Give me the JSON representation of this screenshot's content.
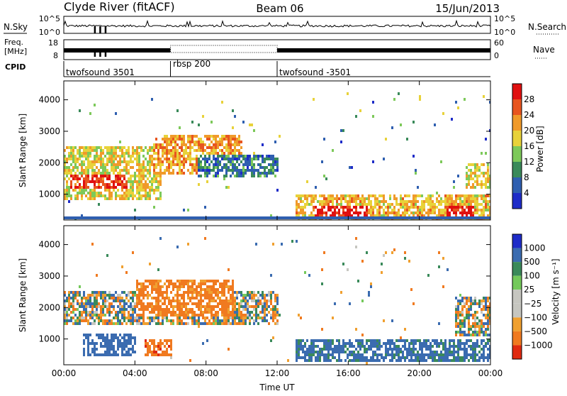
{
  "header": {
    "station": "Clyde River (fitACF)",
    "beam": "Beam 06",
    "date": "15/Jun/2013"
  },
  "panels": {
    "nsky": {
      "label": "N.Sky",
      "left_ticks": [
        "10^5",
        "10^0"
      ],
      "right_ticks": [
        "10^5",
        "10^0"
      ],
      "right_label": "N.Search"
    },
    "freq": {
      "label_line1": "Freq.",
      "label_line2": "[MHz]",
      "left_ticks": [
        "18",
        "8"
      ],
      "right_ticks": [
        "60",
        "0"
      ],
      "right_label": "Nave"
    },
    "cpid": {
      "label": "CPID",
      "segments": [
        {
          "start_hour": 0,
          "end_hour": 6,
          "name": "twofsound 3501"
        },
        {
          "start_hour": 6,
          "end_hour": 12,
          "name": "rbsp 200"
        },
        {
          "start_hour": 12,
          "end_hour": 24,
          "name": "twofsound -3501"
        }
      ]
    }
  },
  "colors": {
    "power_scale": [
      "#1e2cc8",
      "#2f5fb0",
      "#3a8a5a",
      "#7dc95a",
      "#e8d23a",
      "#f09a2a",
      "#e8551f",
      "#e01010"
    ],
    "velocity_scale": [
      "#1e2cc8",
      "#3b6cb0",
      "#3a8a5a",
      "#74c95b",
      "#c6c6c0",
      "#c6c6c0",
      "#f0a030",
      "#f07a20",
      "#e02a10"
    ],
    "ground_scatter": "#c6c6c0"
  },
  "chart_data": [
    {
      "type": "heatmap",
      "name": "power",
      "ylabel": "Slant Range [km]",
      "xlabel": "",
      "x_ticks": [
        "00:00",
        "04:00",
        "08:00",
        "12:00",
        "16:00",
        "20:00",
        "00:00"
      ],
      "x_range_hours": [
        0,
        24
      ],
      "ylim": [
        180,
        4600
      ],
      "y_ticks": [
        1000,
        2000,
        3000,
        4000
      ],
      "colorbar": {
        "label": "Power [dB]",
        "ticks": [
          "28",
          "24",
          "20",
          "16",
          "12",
          "8",
          "4"
        ],
        "range": [
          0,
          32
        ]
      },
      "features": [
        {
          "hours": [
            0,
            5.5
          ],
          "range_km": [
            900,
            2600
          ],
          "level_db": 18
        },
        {
          "hours": [
            0.3,
            3.5
          ],
          "range_km": [
            1200,
            1700
          ],
          "level_db": 28
        },
        {
          "hours": [
            5,
            10
          ],
          "range_km": [
            1700,
            2900
          ],
          "level_db": 22
        },
        {
          "hours": [
            7.5,
            12
          ],
          "range_km": [
            1600,
            2300
          ],
          "level_db": 8
        },
        {
          "hours": [
            13,
            24
          ],
          "range_km": [
            250,
            1000
          ],
          "level_db": 20
        },
        {
          "hours": [
            14,
            17
          ],
          "range_km": [
            300,
            700
          ],
          "level_db": 30
        },
        {
          "hours": [
            21.5,
            23
          ],
          "range_km": [
            300,
            700
          ],
          "level_db": 30
        },
        {
          "hours": [
            22.5,
            24
          ],
          "range_km": [
            1200,
            2000
          ],
          "level_db": 18
        }
      ]
    },
    {
      "type": "heatmap",
      "name": "velocity",
      "ylabel": "Slant Range [km]",
      "xlabel": "Time UT",
      "x_ticks": [
        "00:00",
        "04:00",
        "08:00",
        "12:00",
        "16:00",
        "20:00",
        "00:00"
      ],
      "x_range_hours": [
        0,
        24
      ],
      "ylim": [
        180,
        4600
      ],
      "y_ticks": [
        1000,
        2000,
        3000,
        4000
      ],
      "colorbar": {
        "label": "Velocity [m s⁻¹]",
        "ticks": [
          "1000",
          "500",
          "100",
          "25",
          "−25",
          "−100",
          "−500",
          "−1000"
        ]
      },
      "features": [
        {
          "hours": [
            0,
            12
          ],
          "range_km": [
            1500,
            2600
          ],
          "velocity": 0
        },
        {
          "hours": [
            1,
            4
          ],
          "range_km": [
            500,
            1200
          ],
          "velocity": 300
        },
        {
          "hours": [
            4,
            9.5
          ],
          "range_km": [
            1800,
            2900
          ],
          "velocity": -200
        },
        {
          "hours": [
            4.5,
            6
          ],
          "range_km": [
            500,
            1000
          ],
          "velocity": -400
        },
        {
          "hours": [
            13,
            24
          ],
          "range_km": [
            300,
            1000
          ],
          "velocity": 200
        },
        {
          "hours": [
            22,
            24
          ],
          "range_km": [
            1100,
            2400
          ],
          "velocity": 0
        }
      ]
    }
  ]
}
